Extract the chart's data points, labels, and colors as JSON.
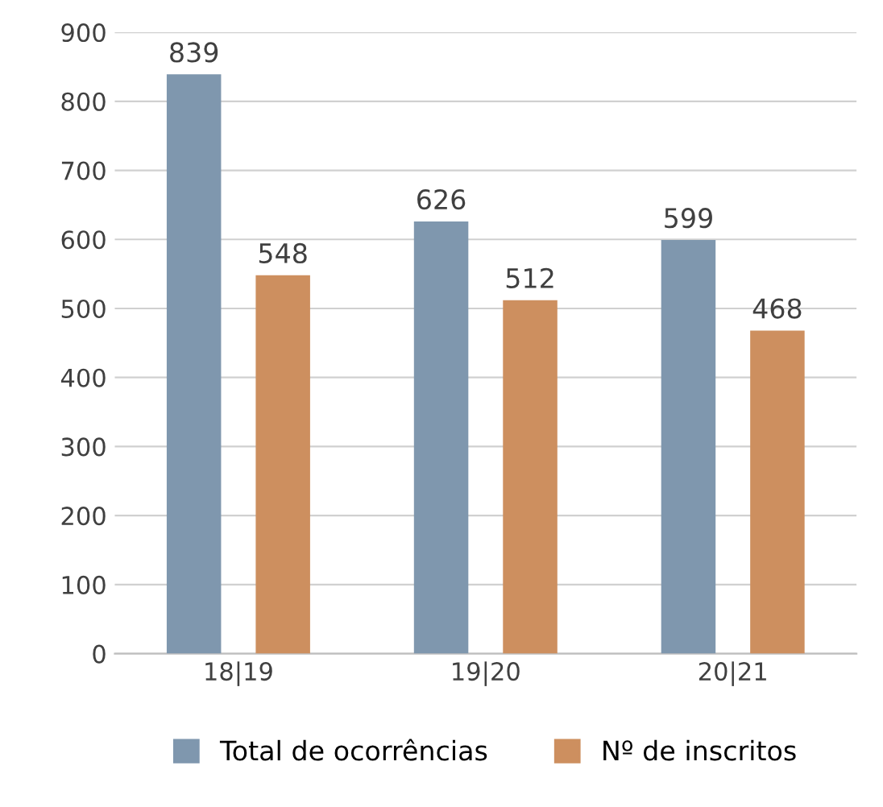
{
  "chart_data": {
    "type": "bar",
    "categories": [
      "18|19",
      "19|20",
      "20|21"
    ],
    "series": [
      {
        "name": "Total de ocorrências",
        "color": "#7f97ae",
        "values": [
          839,
          626,
          599
        ]
      },
      {
        "name": "Nº de inscritos",
        "color": "#cd8f5f",
        "values": [
          548,
          512,
          468
        ]
      }
    ],
    "ylim": [
      0,
      900
    ],
    "yticks": [
      0,
      100,
      200,
      300,
      400,
      500,
      600,
      700,
      800,
      900
    ],
    "grid": "y",
    "legend": "bottom",
    "data_labels": true
  }
}
